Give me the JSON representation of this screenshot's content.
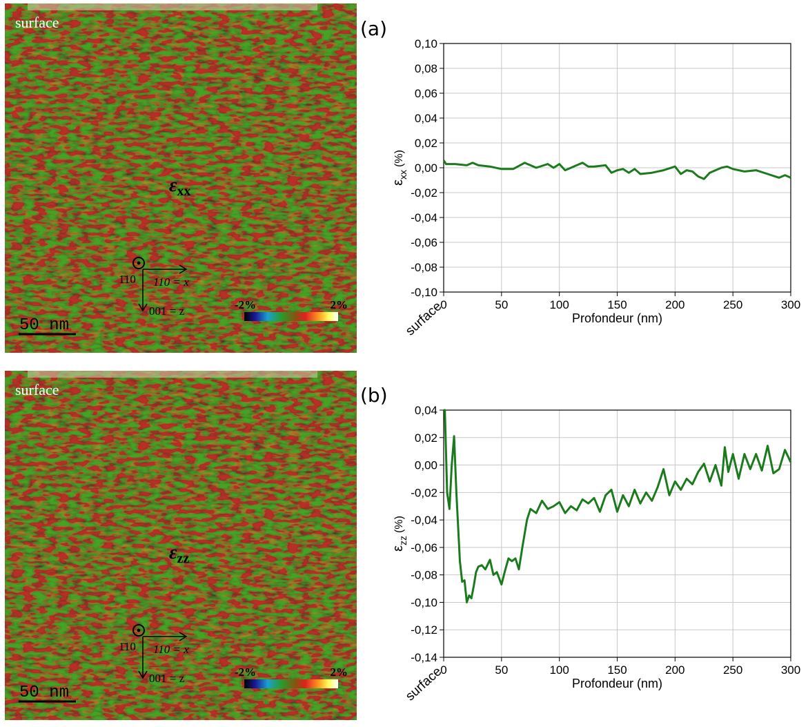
{
  "chart_data": [
    {
      "type": "line",
      "panel_label": "(a)",
      "xlabel": "Profondeur (nm)",
      "ylabel": {
        "symbol": "ε",
        "subscript": "xx",
        "unit": "(%)"
      },
      "annotation": "surface",
      "x": [
        0,
        2,
        10,
        20,
        25,
        30,
        40,
        50,
        60,
        70,
        75,
        80,
        90,
        95,
        100,
        105,
        110,
        120,
        125,
        130,
        140,
        145,
        150,
        155,
        160,
        165,
        170,
        180,
        190,
        200,
        205,
        210,
        215,
        220,
        225,
        230,
        240,
        245,
        250,
        260,
        270,
        280,
        290,
        295,
        300
      ],
      "series": [
        {
          "color": "#1b7a1b",
          "values": [
            0.006,
            0.003,
            0.003,
            0.002,
            0.004,
            0.002,
            0.001,
            -0.001,
            -0.001,
            0.004,
            0.002,
            0.0,
            0.003,
            0.0,
            0.003,
            -0.002,
            0.0,
            0.004,
            0.001,
            0.001,
            0.002,
            -0.004,
            -0.002,
            -0.001,
            -0.004,
            -0.001,
            -0.005,
            -0.004,
            -0.002,
            0.001,
            -0.005,
            -0.002,
            -0.003,
            -0.007,
            -0.009,
            -0.004,
            0.0,
            0.001,
            -0.001,
            -0.003,
            -0.002,
            -0.005,
            -0.008,
            -0.006,
            -0.008
          ]
        }
      ],
      "xlim": [
        0,
        300
      ],
      "xticks": [
        0,
        50,
        100,
        150,
        200,
        250,
        300
      ],
      "ylim": [
        -0.1,
        0.1
      ],
      "yticks": [
        {
          "value": -0.1,
          "label": "-0,10"
        },
        {
          "value": -0.08,
          "label": "-0,08"
        },
        {
          "value": -0.06,
          "label": "-0,06"
        },
        {
          "value": -0.04,
          "label": "-0,04"
        },
        {
          "value": -0.02,
          "label": "-0,02"
        },
        {
          "value": 0,
          "label": "0,00"
        },
        {
          "value": 0.02,
          "label": "0,02"
        },
        {
          "value": 0.04,
          "label": "0,04"
        },
        {
          "value": 0.06,
          "label": "0,06"
        },
        {
          "value": 0.08,
          "label": "0,08"
        },
        {
          "value": 0.1,
          "label": "0,10"
        }
      ],
      "grid": true
    },
    {
      "type": "line",
      "panel_label": "(b)",
      "xlabel": "Profondeur (nm)",
      "ylabel": {
        "symbol": "ε",
        "subscript": "zz",
        "unit": "(%)"
      },
      "annotation": "surface",
      "x": [
        0,
        1,
        3,
        5,
        7,
        9,
        11,
        14,
        16,
        18,
        20,
        22,
        24,
        26,
        28,
        30,
        33,
        36,
        40,
        43,
        46,
        50,
        53,
        56,
        59,
        62,
        65,
        68,
        72,
        75,
        80,
        85,
        90,
        95,
        100,
        105,
        110,
        115,
        120,
        125,
        130,
        135,
        140,
        145,
        150,
        155,
        160,
        165,
        170,
        175,
        180,
        185,
        190,
        195,
        200,
        205,
        210,
        215,
        220,
        225,
        230,
        235,
        240,
        243,
        246,
        250,
        255,
        260,
        265,
        270,
        275,
        280,
        285,
        290,
        295,
        300
      ],
      "series": [
        {
          "color": "#1b7a1b",
          "values": [
            0.04,
            0.04,
            -0.02,
            -0.032,
            0.0,
            0.021,
            -0.02,
            -0.07,
            -0.085,
            -0.084,
            -0.1,
            -0.095,
            -0.097,
            -0.088,
            -0.078,
            -0.074,
            -0.073,
            -0.076,
            -0.069,
            -0.08,
            -0.078,
            -0.087,
            -0.077,
            -0.068,
            -0.07,
            -0.068,
            -0.076,
            -0.06,
            -0.04,
            -0.032,
            -0.035,
            -0.026,
            -0.032,
            -0.03,
            -0.027,
            -0.035,
            -0.03,
            -0.033,
            -0.025,
            -0.028,
            -0.024,
            -0.034,
            -0.022,
            -0.018,
            -0.034,
            -0.022,
            -0.03,
            -0.018,
            -0.028,
            -0.02,
            -0.026,
            -0.016,
            -0.003,
            -0.022,
            -0.012,
            -0.018,
            -0.01,
            -0.014,
            -0.005,
            0.001,
            -0.012,
            0.0,
            -0.015,
            0.013,
            -0.005,
            0.008,
            -0.01,
            0.008,
            -0.003,
            0.008,
            -0.004,
            0.014,
            -0.006,
            -0.003,
            0.011,
            0.002
          ]
        }
      ],
      "xlim": [
        0,
        300
      ],
      "xticks": [
        0,
        50,
        100,
        150,
        200,
        250,
        300
      ],
      "ylim": [
        -0.14,
        0.04
      ],
      "yticks": [
        {
          "value": -0.14,
          "label": "-0,14"
        },
        {
          "value": -0.12,
          "label": "-0,12"
        },
        {
          "value": -0.1,
          "label": "-0,10"
        },
        {
          "value": -0.08,
          "label": "-0,08"
        },
        {
          "value": -0.06,
          "label": "-0,06"
        },
        {
          "value": -0.04,
          "label": "-0,04"
        },
        {
          "value": -0.02,
          "label": "-0,02"
        },
        {
          "value": 0,
          "label": "0,00"
        },
        {
          "value": 0.02,
          "label": "0,02"
        },
        {
          "value": 0.04,
          "label": "0,04"
        }
      ],
      "grid": true
    }
  ],
  "maps": [
    {
      "surface": "surface",
      "symbol": "ε",
      "subscript": "xx",
      "normal": "1̄10",
      "x_axis": "110 = x",
      "z_axis": "001 = z",
      "colorbar_min": "-2%",
      "colorbar_max": "2%",
      "scale_bar": "50 nm"
    },
    {
      "surface": "surface",
      "symbol": "ε",
      "subscript": "zz",
      "normal": "1̄10",
      "x_axis": "110 = x",
      "z_axis": "001 = z",
      "colorbar_min": "-2%",
      "colorbar_max": "2%",
      "scale_bar": "50 nm"
    }
  ]
}
